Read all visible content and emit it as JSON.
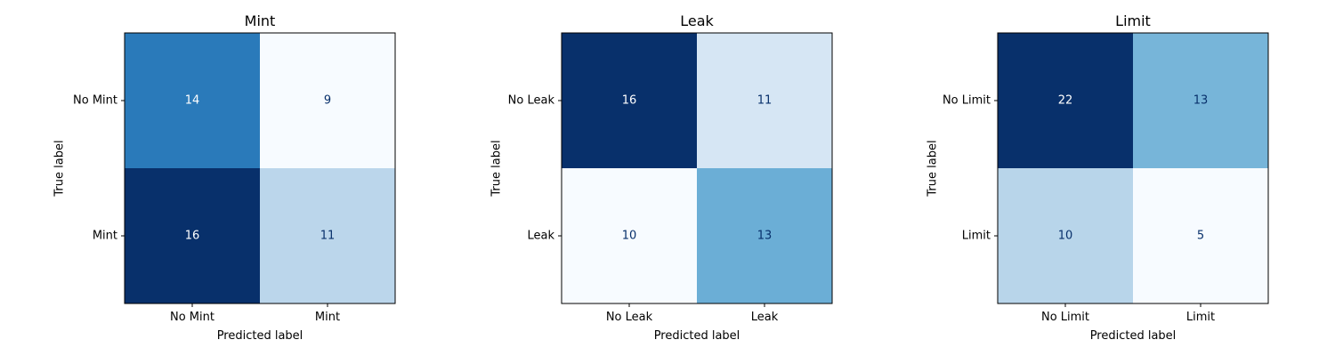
{
  "chart_data": [
    {
      "type": "heatmap",
      "title": "Mint",
      "xlabel": "Predicted label",
      "ylabel": "True label",
      "x_tick_labels": [
        "No Mint",
        "Mint"
      ],
      "y_tick_labels": [
        "No Mint",
        "Mint"
      ],
      "matrix": [
        [
          14,
          9
        ],
        [
          16,
          11
        ]
      ],
      "colormap": "Blues"
    },
    {
      "type": "heatmap",
      "title": "Leak",
      "xlabel": "Predicted label",
      "ylabel": "True label",
      "x_tick_labels": [
        "No Leak",
        "Leak"
      ],
      "y_tick_labels": [
        "No Leak",
        "Leak"
      ],
      "matrix": [
        [
          16,
          11
        ],
        [
          10,
          13
        ]
      ],
      "colormap": "Blues"
    },
    {
      "type": "heatmap",
      "title": "Limit",
      "xlabel": "Predicted label",
      "ylabel": "True label",
      "x_tick_labels": [
        "No Limit",
        "Limit"
      ],
      "y_tick_labels": [
        "No Limit",
        "Limit"
      ],
      "matrix": [
        [
          22,
          13
        ],
        [
          10,
          5
        ]
      ],
      "colormap": "Blues"
    }
  ]
}
